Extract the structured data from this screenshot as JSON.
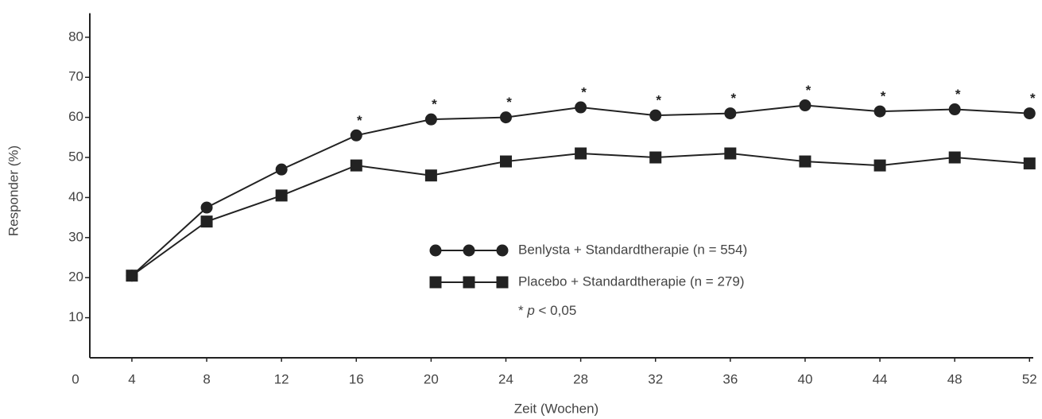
{
  "chart_data": {
    "type": "line",
    "x_label": "Zeit (Wochen)",
    "y_label": "Responder (%)",
    "corner_label": "0",
    "x": [
      4,
      8,
      12,
      16,
      20,
      24,
      28,
      32,
      36,
      40,
      44,
      48,
      52
    ],
    "series": [
      {
        "name": "Benlysta + Standardtherapie (n = 554)",
        "color": "#222222",
        "marker": "circle",
        "values": [
          20.5,
          37.5,
          47,
          55.5,
          59.5,
          60,
          62.5,
          60.5,
          61,
          63,
          61.5,
          62,
          61
        ],
        "annotations": [
          null,
          null,
          null,
          "*",
          "*",
          "*",
          "*",
          "*",
          "*",
          "*",
          "*",
          "*",
          "*"
        ]
      },
      {
        "name": "Placebo + Standardtherapie (n = 279)",
        "color": "#222222",
        "marker": "square",
        "values": [
          20.5,
          34,
          40.5,
          48,
          45.5,
          49,
          51,
          50,
          51,
          49,
          48,
          50,
          48.5
        ]
      }
    ],
    "note": {
      "prefix": "* ",
      "symbol": "p",
      "rest": " < 0,05"
    },
    "xlim": [
      1.75,
      52.2
    ],
    "xticks": [
      4,
      8,
      12,
      16,
      20,
      24,
      28,
      32,
      36,
      40,
      44,
      48,
      52
    ],
    "ylim": [
      0,
      86
    ],
    "yticks": [
      10,
      20,
      30,
      40,
      50,
      60,
      70,
      80
    ],
    "grid": false
  }
}
